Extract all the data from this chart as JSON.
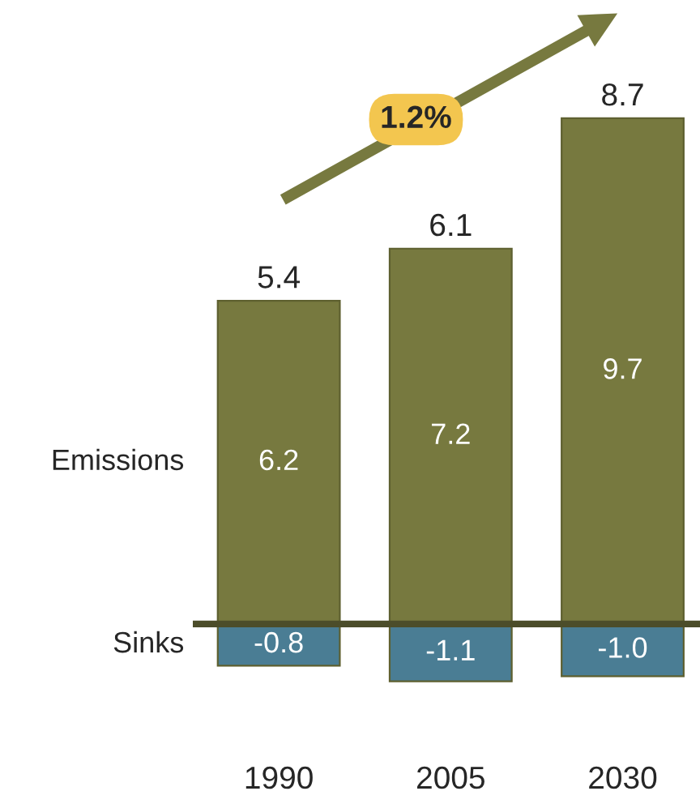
{
  "chart_data": {
    "type": "bar",
    "categories": [
      "1990",
      "2005",
      "2030"
    ],
    "series": [
      {
        "name": "Emissions",
        "color": "#77793f",
        "values": [
          6.2,
          7.2,
          9.7
        ],
        "value_labels": [
          "6.2",
          "7.2",
          "9.7"
        ]
      },
      {
        "name": "Sinks",
        "color": "#4a7d94",
        "values": [
          -0.8,
          -1.1,
          -1.0
        ],
        "value_labels": [
          "-0.8",
          "-1.1",
          "-1.0"
        ]
      }
    ],
    "stacked": true,
    "totals": [
      "5.4",
      "6.1",
      "8.7"
    ],
    "annotations": [
      "1.2%"
    ],
    "grid": false,
    "legend": false
  }
}
